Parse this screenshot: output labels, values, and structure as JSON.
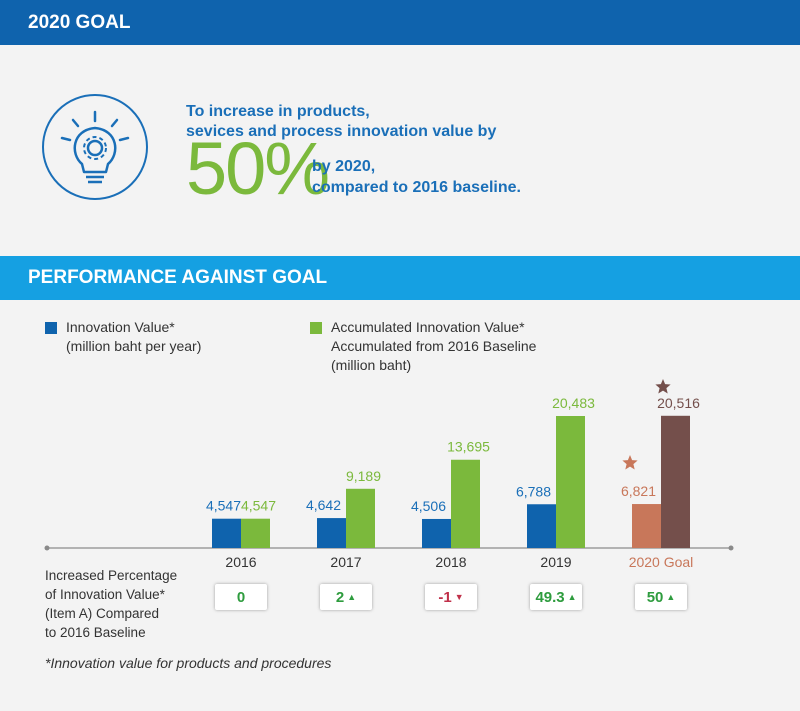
{
  "goal_header": "2020 GOAL",
  "goal": {
    "line1": "To increase in products,",
    "line2": "sevices and process innovation value by",
    "percent": "50%",
    "line3": "by 2020,",
    "line4": "compared to 2016 baseline."
  },
  "performance_header": "PERFORMANCE AGAINST GOAL",
  "legend": [
    {
      "name": "innovation",
      "line1": "Innovation Value*",
      "line2": "(million baht per year)"
    },
    {
      "name": "accumulated",
      "line1": "Accumulated Innovation Value*",
      "line2": "Accumulated from 2016 Baseline",
      "line3": "(million baht)"
    }
  ],
  "chart_data": {
    "type": "bar",
    "categories": [
      "2016",
      "2017",
      "2018",
      "2019",
      "2020 Goal"
    ],
    "series": [
      {
        "name": "Innovation Value*",
        "values": [
          4547,
          4642,
          4506,
          6788,
          6821
        ],
        "labels": [
          "4,547",
          "4,642",
          "4,506",
          "6,788",
          "6,821"
        ]
      },
      {
        "name": "Accumulated Innovation Value*",
        "values": [
          4547,
          9189,
          13695,
          20483,
          20516
        ],
        "labels": [
          "4,547",
          "9,189",
          "13,695",
          "20,483",
          "20,516"
        ]
      }
    ],
    "colors": {
      "innovation": "#0f63ad",
      "accumulated": "#7bb93c",
      "goal_innovation": "#c8775a",
      "goal_accumulated": "#744f4b"
    }
  },
  "increase_label": [
    "Increased Percentage",
    "of Innovation Value*",
    "(Item A) Compared",
    "to 2016 Baseline"
  ],
  "increase_values": [
    {
      "value": "0",
      "trend": "none"
    },
    {
      "value": "2",
      "trend": "up"
    },
    {
      "value": "-1",
      "trend": "down"
    },
    {
      "value": "49.3",
      "trend": "up"
    },
    {
      "value": "50",
      "trend": "up"
    }
  ],
  "footnote": "*Innovation value for products and procedures"
}
